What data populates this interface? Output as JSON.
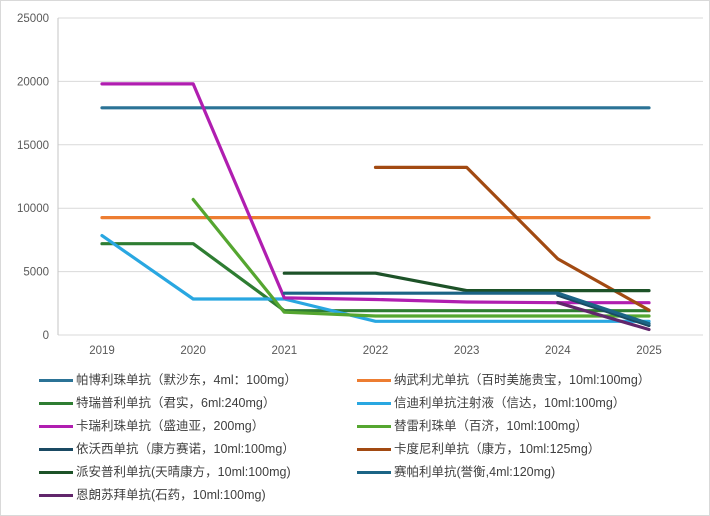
{
  "chart_data": {
    "type": "line",
    "title": "",
    "xlabel": "",
    "ylabel": "",
    "x": [
      2019,
      2020,
      2021,
      2022,
      2023,
      2024,
      2025
    ],
    "x_tick_labels": [
      "2019",
      "2020",
      "2021",
      "2022",
      "2023",
      "2024",
      "2025"
    ],
    "ylim": [
      0,
      25000
    ],
    "yticks": [
      0,
      5000,
      10000,
      15000,
      20000,
      25000
    ],
    "y_tick_labels": [
      "0",
      "5000",
      "10000",
      "15000",
      "20000",
      "25000"
    ],
    "grid": true,
    "legend_position": "bottom-two-columns",
    "series": [
      {
        "name": "帕博利珠单抗（默沙东，4ml：100mg）",
        "color": "#2b7396",
        "values": [
          17918,
          17918,
          17918,
          17918,
          17918,
          17918,
          17918
        ]
      },
      {
        "name": "纳武利尤单抗（百时美施贵宝，10ml:100mg）",
        "color": "#ed7d31",
        "values": [
          9260,
          9260,
          9260,
          9260,
          9260,
          9260,
          9260
        ]
      },
      {
        "name": "特瑞普利单抗（君实，6ml:240mg）",
        "color": "#2e7d32",
        "values": [
          7200,
          7200,
          1913,
          1913,
          1913,
          1913,
          1913
        ]
      },
      {
        "name": "信迪利单抗注射液（信达，10ml:100mg）",
        "color": "#29a7e1",
        "values": [
          7838,
          2843,
          2843,
          1080,
          1080,
          1080,
          1080
        ]
      },
      {
        "name": "卡瑞利珠单抗（盛迪亚，200mg）",
        "color": "#b01eb0",
        "values": [
          19800,
          19800,
          2928,
          2800,
          2600,
          2550,
          2550
        ]
      },
      {
        "name": "替雷利珠单（百济，10ml:100mg）",
        "color": "#55a630",
        "values": [
          null,
          10688,
          1800,
          1500,
          1500,
          1500,
          1500
        ]
      },
      {
        "name": "依沃西单抗（康方赛诺，10ml:100mg）",
        "color": "#1a4a63",
        "values": [
          null,
          null,
          null,
          null,
          null,
          3150,
          750
        ]
      },
      {
        "name": "卡度尼利单抗（康方，10ml:125mg）",
        "color": "#a24a12",
        "values": [
          null,
          null,
          null,
          13220,
          13220,
          6000,
          1960
        ]
      },
      {
        "name": "派安普利单抗(天晴康方，10ml:100mg)",
        "color": "#1d5228",
        "values": [
          null,
          null,
          4875,
          4875,
          3500,
          3500,
          3500
        ]
      },
      {
        "name": "赛帕利单抗(誉衡,4ml:120mg)",
        "color": "#1b6485",
        "values": [
          null,
          null,
          3300,
          3300,
          3300,
          3300,
          900
        ]
      },
      {
        "name": "恩朗苏拜单抗(石药，10ml:100mg)",
        "color": "#61266b",
        "values": [
          null,
          null,
          null,
          null,
          null,
          2550,
          430
        ]
      }
    ],
    "legend_columns": [
      [
        0,
        2,
        4,
        6,
        8,
        10
      ],
      [
        1,
        3,
        5,
        7,
        9
      ]
    ],
    "style": {
      "grid_color": "#d9d9d9",
      "axis_line_color": "#c6c6c6",
      "tick_label_color": "#595959",
      "line_width": 3.2,
      "background": "#ffffff"
    }
  }
}
